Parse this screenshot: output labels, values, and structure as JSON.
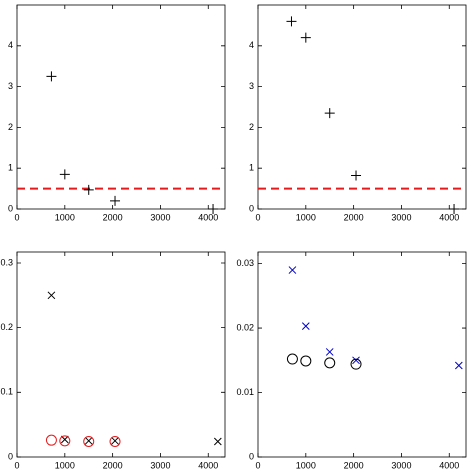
{
  "chart_data": [
    {
      "type": "scatter",
      "xlim": [
        0,
        4350
      ],
      "ylim": [
        0,
        5
      ],
      "xticks": [
        0,
        1000,
        2000,
        3000,
        4000
      ],
      "yticks": [
        0,
        1,
        2,
        3,
        4
      ],
      "series": [
        {
          "color": "#000000",
          "marker": "plus",
          "x": [
            720,
            1000,
            1500,
            2050,
            4100
          ],
          "values": [
            3.25,
            0.85,
            0.47,
            0.2,
            0
          ]
        }
      ],
      "reference_line": {
        "y": 0.5,
        "color": "#e41a1c",
        "dashed": true
      }
    },
    {
      "type": "scatter",
      "xlim": [
        0,
        4350
      ],
      "ylim": [
        0,
        5
      ],
      "xticks": [
        0,
        1000,
        2000,
        3000,
        4000
      ],
      "yticks": [
        0,
        1,
        2,
        3,
        4
      ],
      "series": [
        {
          "color": "#000000",
          "marker": "plus",
          "x": [
            700,
            1000,
            1500,
            2050,
            4100
          ],
          "values": [
            4.6,
            4.2,
            2.35,
            0.82,
            0
          ]
        }
      ],
      "reference_line": {
        "y": 0.5,
        "color": "#e41a1c",
        "dashed": true
      }
    },
    {
      "type": "scatter",
      "xlim": [
        0,
        4350
      ],
      "ylim": [
        0,
        0.317
      ],
      "xticks": [
        0,
        1000,
        2000,
        3000,
        4000
      ],
      "yticks": [
        0,
        0.1,
        0.2,
        0.3
      ],
      "series": [
        {
          "color": "#000000",
          "marker": "cross",
          "x": [
            720,
            1000,
            1500,
            2050,
            4200
          ],
          "values": [
            0.25,
            0.027,
            0.025,
            0.025,
            0.024
          ]
        },
        {
          "color": "#e41a1c",
          "marker": "circle",
          "x": [
            720,
            1000,
            1500,
            2050
          ],
          "values": [
            0.026,
            0.025,
            0.024,
            0.024
          ]
        }
      ]
    },
    {
      "type": "scatter",
      "xlim": [
        0,
        4350
      ],
      "ylim": [
        0,
        0.0318
      ],
      "xticks": [
        0,
        1000,
        2000,
        3000,
        4000
      ],
      "yticks": [
        0,
        0.01,
        0.02,
        0.03
      ],
      "series": [
        {
          "color": "#0000cc",
          "marker": "cross",
          "x": [
            720,
            1000,
            1500,
            2050,
            4200
          ],
          "values": [
            0.029,
            0.0203,
            0.0163,
            0.015,
            0.0142
          ]
        },
        {
          "color": "#000000",
          "marker": "circle",
          "x": [
            720,
            1000,
            1500,
            2050
          ],
          "values": [
            0.0152,
            0.0149,
            0.0146,
            0.0144
          ]
        }
      ]
    }
  ]
}
